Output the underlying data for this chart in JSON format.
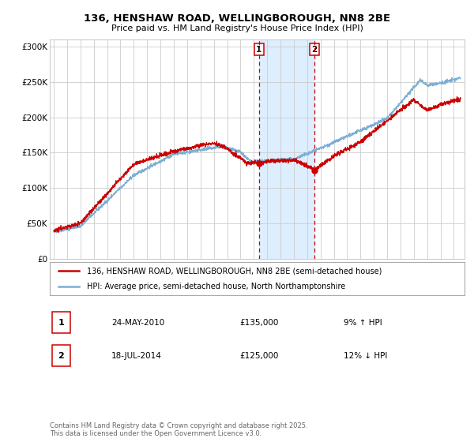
{
  "title_line1": "136, HENSHAW ROAD, WELLINGBOROUGH, NN8 2BE",
  "title_line2": "Price paid vs. HM Land Registry's House Price Index (HPI)",
  "ylabel_ticks": [
    "£0",
    "£50K",
    "£100K",
    "£150K",
    "£200K",
    "£250K",
    "£300K"
  ],
  "ytick_values": [
    0,
    50000,
    100000,
    150000,
    200000,
    250000,
    300000
  ],
  "ylim": [
    0,
    310000
  ],
  "xlim_start": 1994.7,
  "xlim_end": 2025.8,
  "red_line_color": "#cc0000",
  "blue_line_color": "#7bafd4",
  "grid_color": "#cccccc",
  "bg_color": "#ffffff",
  "shading_color": "#ddeeff",
  "marker1_date": 2010.39,
  "marker2_date": 2014.55,
  "marker1_price": 135000,
  "marker2_price": 125000,
  "legend_label1": "136, HENSHAW ROAD, WELLINGBOROUGH, NN8 2BE (semi-detached house)",
  "legend_label2": "HPI: Average price, semi-detached house, North Northamptonshire",
  "annotation1_label": "1",
  "annotation2_label": "2",
  "table_row1": [
    "1",
    "24-MAY-2010",
    "£135,000",
    "9% ↑ HPI"
  ],
  "table_row2": [
    "2",
    "18-JUL-2014",
    "£125,000",
    "12% ↓ HPI"
  ],
  "footer": "Contains HM Land Registry data © Crown copyright and database right 2025.\nThis data is licensed under the Open Government Licence v3.0."
}
